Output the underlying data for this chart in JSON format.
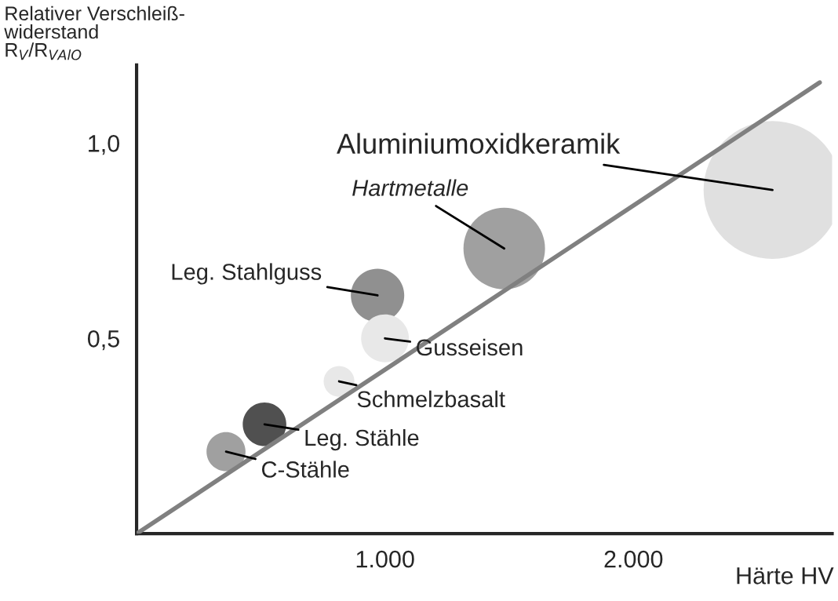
{
  "chart_data": {
    "type": "bubble",
    "xlabel": "Härte HV",
    "ylabel": "Relativer Verschleiß-\nwiderstand\nR$_{V}$/R$_{VAlO}$",
    "xlim": [
      0,
      2800
    ],
    "ylim": [
      0,
      1.2
    ],
    "xticks": [
      {
        "value": 1000,
        "label": "1.000"
      },
      {
        "value": 2000,
        "label": "2.000"
      }
    ],
    "yticks": [
      {
        "value": 0.5,
        "label": "0,5"
      },
      {
        "value": 1.0,
        "label": "1,0"
      }
    ],
    "grid": false,
    "legend": false,
    "series": [
      {
        "x": [
          2560,
          1480,
          970,
          1000,
          815,
          515,
          360
        ],
        "values": [
          0.88,
          0.73,
          0.61,
          0.5,
          0.39,
          0.28,
          0.21
        ],
        "sizes": [
          1,
          0.35,
          0.15,
          0.12,
          0.05,
          0.1,
          0.08
        ],
        "colors": [
          "#e0e0e0",
          "#a0a0a0",
          "#909090",
          "#e8e8e8",
          "#e8e8e8",
          "#505050",
          "#a0a0a0"
        ]
      },
      {
        "type": "line",
        "x": [
          0,
          2750
        ],
        "values": [
          0,
          1.155
        ],
        "color": "#808080"
      }
    ],
    "annotations": [
      {
        "text": "Aluminiumoxidkeramik",
        "x": 2560,
        "y": 0.88
      },
      {
        "text": "Hartmetalle",
        "x": 1480,
        "y": 0.73
      },
      {
        "text": "Leg. Stahlguss",
        "x": 970,
        "y": 0.61
      },
      {
        "text": "Gusseisen",
        "x": 1000,
        "y": 0.5
      },
      {
        "text": "Schmelzbasalt",
        "x": 815,
        "y": 0.39
      },
      {
        "text": "Leg. Stähle",
        "x": 515,
        "y": 0.28
      },
      {
        "text": "C-Stähle",
        "x": 360,
        "y": 0.21
      }
    ]
  }
}
